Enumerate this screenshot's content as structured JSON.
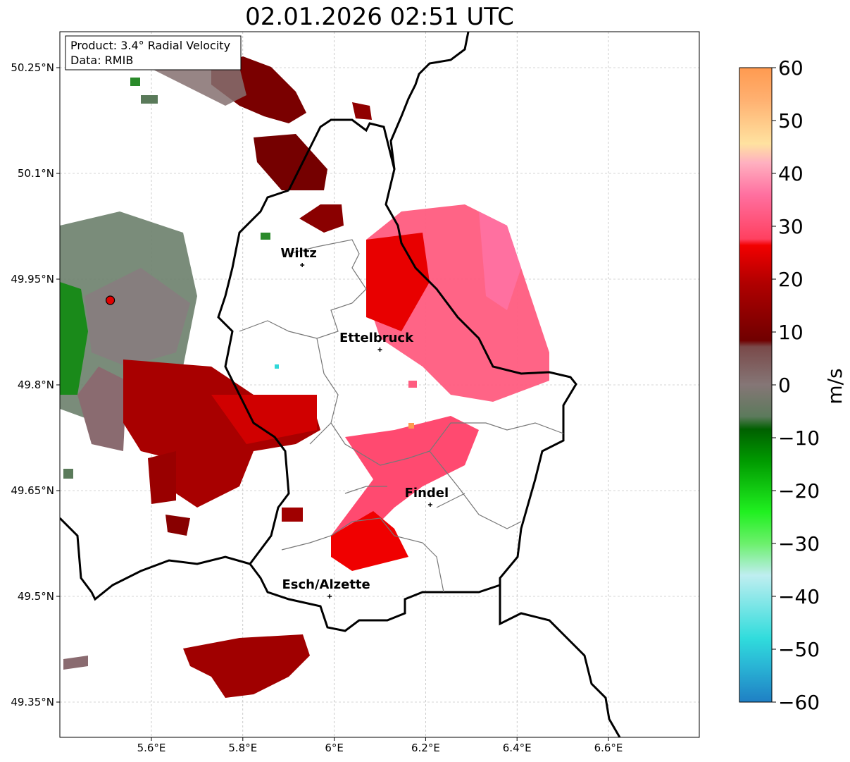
{
  "title": "02.01.2026 02:51 UTC",
  "infobox": {
    "product": "Product: 3.4° Radial Velocity",
    "data": "Data: RMIB"
  },
  "map": {
    "lon_ticks": [
      "5.6°E",
      "5.8°E",
      "6°E",
      "6.2°E",
      "6.4°E",
      "6.6°E"
    ],
    "lat_ticks": [
      "50.25°N",
      "50.1°N",
      "49.95°N",
      "49.8°N",
      "49.65°N",
      "49.5°N",
      "49.35°N"
    ],
    "gridlines": true,
    "cities": [
      {
        "name": "Wiltz",
        "lon": 5.93,
        "lat": 49.97
      },
      {
        "name": "Ettelbruck",
        "lon": 6.1,
        "lat": 49.85
      },
      {
        "name": "Findel",
        "lon": 6.21,
        "lat": 49.63
      },
      {
        "name": "Esch/Alzette",
        "lon": 5.99,
        "lat": 49.5
      }
    ],
    "radar_site": {
      "lon": 5.51,
      "lat": 49.92,
      "color": "#e00000"
    }
  },
  "colorbar": {
    "label": "m/s",
    "ticks": [
      "60",
      "50",
      "40",
      "30",
      "20",
      "10",
      "0",
      "−10",
      "−20",
      "−30",
      "−40",
      "−50",
      "−60"
    ],
    "range": [
      -60,
      60
    ],
    "colors": {
      "outbound_strong": "#ff9a50",
      "outbound_pink": "#ff5c8a",
      "outbound_red": "#e60000",
      "outbound_dark": "#7a0000",
      "zero": "#8a7a7a",
      "inbound_green": "#006400",
      "inbound_bright": "#00e000",
      "inbound_cyan": "#30d8d8",
      "inbound_blue": "#2080c0"
    }
  }
}
